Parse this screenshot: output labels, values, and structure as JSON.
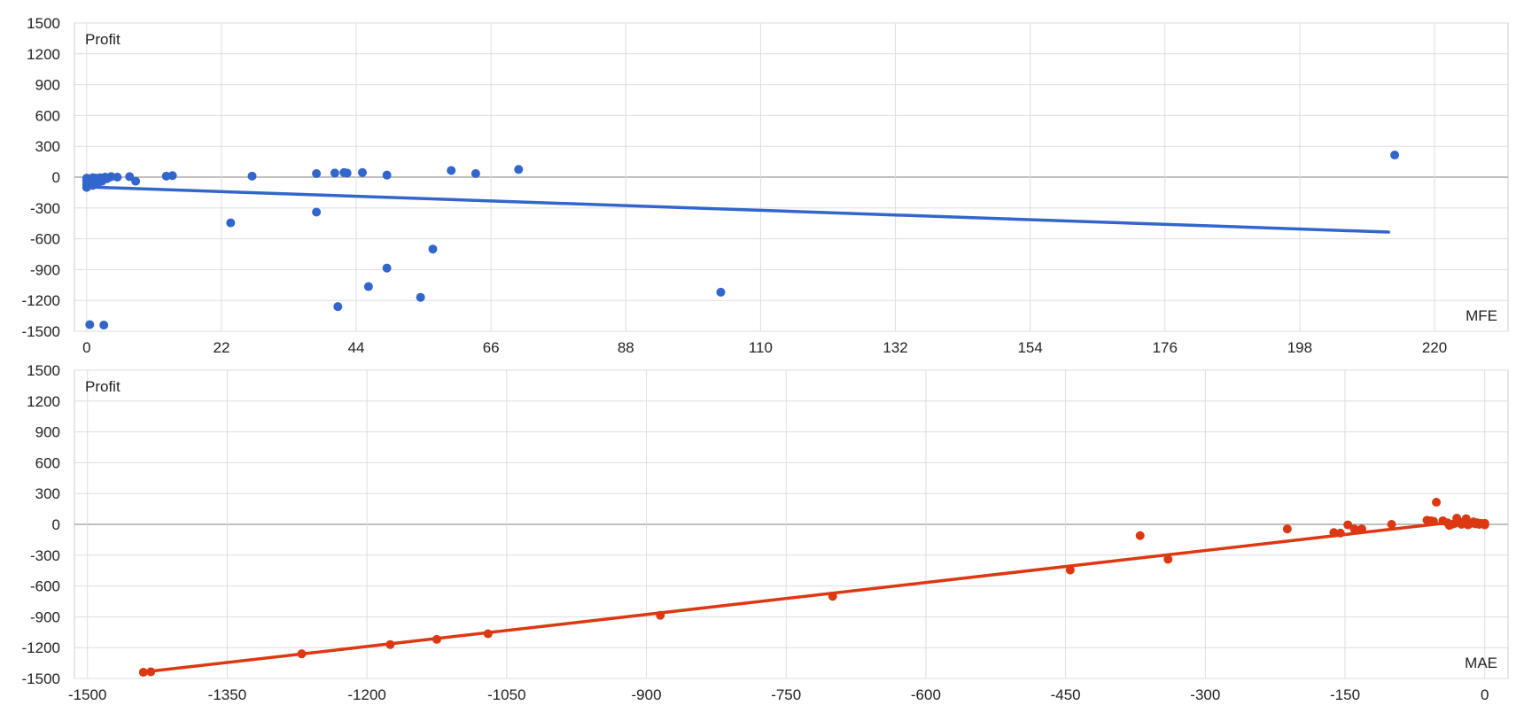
{
  "chart_data": [
    {
      "type": "scatter",
      "ylabel": "Profit",
      "xlabel": "MFE",
      "xlim": [
        -2,
        232
      ],
      "ylim": [
        -1500,
        1500
      ],
      "x_ticks": [
        "0",
        "22",
        "44",
        "66",
        "88",
        "110",
        "132",
        "154",
        "176",
        "198",
        "220"
      ],
      "x_tick_values": [
        0,
        22,
        44,
        66,
        88,
        110,
        132,
        154,
        176,
        198,
        220
      ],
      "y_ticks": [
        "1500",
        "1200",
        "900",
        "600",
        "300",
        "0",
        "-300",
        "-600",
        "-900",
        "-1200",
        "-1500"
      ],
      "y_tick_values": [
        1500,
        1200,
        900,
        600,
        300,
        0,
        -300,
        -600,
        -900,
        -1200,
        -1500
      ],
      "grid": true,
      "colors": {
        "points": "#3366cc",
        "trend": "#3366cc"
      },
      "series": [
        {
          "points": [
            [
              0,
              -10
            ],
            [
              0,
              -40
            ],
            [
              0,
              -70
            ],
            [
              0,
              -100
            ],
            [
              0.3,
              -30
            ],
            [
              0.5,
              -55
            ],
            [
              0.8,
              -20
            ],
            [
              1,
              -5
            ],
            [
              1,
              -80
            ],
            [
              1.2,
              -40
            ],
            [
              1.5,
              -10
            ],
            [
              1.8,
              -60
            ],
            [
              2,
              -25
            ],
            [
              2.2,
              -5
            ],
            [
              2.5,
              -40
            ],
            [
              2.8,
              -10
            ],
            [
              3,
              0
            ],
            [
              3.3,
              -15
            ],
            [
              3.6,
              -5
            ],
            [
              4,
              5
            ],
            [
              5,
              0
            ],
            [
              7,
              5
            ],
            [
              8,
              -40
            ],
            [
              13,
              10
            ],
            [
              14,
              15
            ],
            [
              23.5,
              -445
            ],
            [
              27,
              10
            ],
            [
              37.5,
              35
            ],
            [
              37.5,
              -340
            ],
            [
              40.5,
              40
            ],
            [
              41,
              -1260
            ],
            [
              42,
              45
            ],
            [
              42.5,
              40
            ],
            [
              45,
              45
            ],
            [
              46,
              -1065
            ],
            [
              49,
              20
            ],
            [
              49,
              -885
            ],
            [
              54.5,
              -1170
            ],
            [
              56.5,
              -700
            ],
            [
              59.5,
              65
            ],
            [
              63.5,
              35
            ],
            [
              70.5,
              75
            ],
            [
              103.5,
              -1120
            ],
            [
              213.5,
              215
            ],
            [
              0.5,
              -1435
            ],
            [
              2.8,
              -1440
            ]
          ]
        }
      ],
      "trendline": {
        "x": [
          0,
          212.5
        ],
        "y": [
          -95,
          -535
        ]
      }
    },
    {
      "type": "scatter",
      "ylabel": "Profit",
      "xlabel": "MAE",
      "xlim": [
        -1514,
        25
      ],
      "ylim": [
        -1500,
        1500
      ],
      "x_ticks": [
        "-1500",
        "-1350",
        "-1200",
        "-1050",
        "-900",
        "-750",
        "-600",
        "-450",
        "-300",
        "-150",
        "0"
      ],
      "x_tick_values": [
        -1500,
        -1350,
        -1200,
        -1050,
        -900,
        -750,
        -600,
        -450,
        -300,
        -150,
        0
      ],
      "y_ticks": [
        "1500",
        "1200",
        "900",
        "600",
        "300",
        "0",
        "-300",
        "-600",
        "-900",
        "-1200",
        "-1500"
      ],
      "y_tick_values": [
        1500,
        1200,
        900,
        600,
        300,
        0,
        -300,
        -600,
        -900,
        -1200,
        -1500
      ],
      "grid": true,
      "colors": {
        "points": "#dc3912",
        "trend": "#dc3912"
      },
      "series": [
        {
          "points": [
            [
              -1440,
              -1440
            ],
            [
              -1432,
              -1435
            ],
            [
              -1270,
              -1260
            ],
            [
              -1175,
              -1170
            ],
            [
              -1125,
              -1120
            ],
            [
              -1070,
              -1065
            ],
            [
              -885,
              -885
            ],
            [
              -700,
              -700
            ],
            [
              -445,
              -445
            ],
            [
              -370,
              -110
            ],
            [
              -340,
              -340
            ],
            [
              -212,
              -45
            ],
            [
              -162,
              -80
            ],
            [
              -155,
              -85
            ],
            [
              -147,
              -5
            ],
            [
              -140,
              -45
            ],
            [
              -132,
              -45
            ],
            [
              -100,
              0
            ],
            [
              -62,
              40
            ],
            [
              -58,
              35
            ],
            [
              -55,
              30
            ],
            [
              -52,
              215
            ],
            [
              -45,
              35
            ],
            [
              -40,
              15
            ],
            [
              -38,
              -10
            ],
            [
              -35,
              0
            ],
            [
              -32,
              10
            ],
            [
              -30,
              60
            ],
            [
              -28,
              30
            ],
            [
              -25,
              0
            ],
            [
              -22,
              20
            ],
            [
              -20,
              55
            ],
            [
              -18,
              -5
            ],
            [
              -15,
              10
            ],
            [
              -12,
              25
            ],
            [
              -10,
              5
            ],
            [
              -8,
              15
            ],
            [
              -6,
              0
            ],
            [
              -4,
              10
            ],
            [
              -2,
              5
            ],
            [
              0,
              10
            ],
            [
              0,
              0
            ],
            [
              0,
              -5
            ]
          ]
        }
      ],
      "trendline": {
        "x": [
          -1442,
          -45
        ],
        "y": [
          -1440,
          10
        ]
      }
    }
  ]
}
